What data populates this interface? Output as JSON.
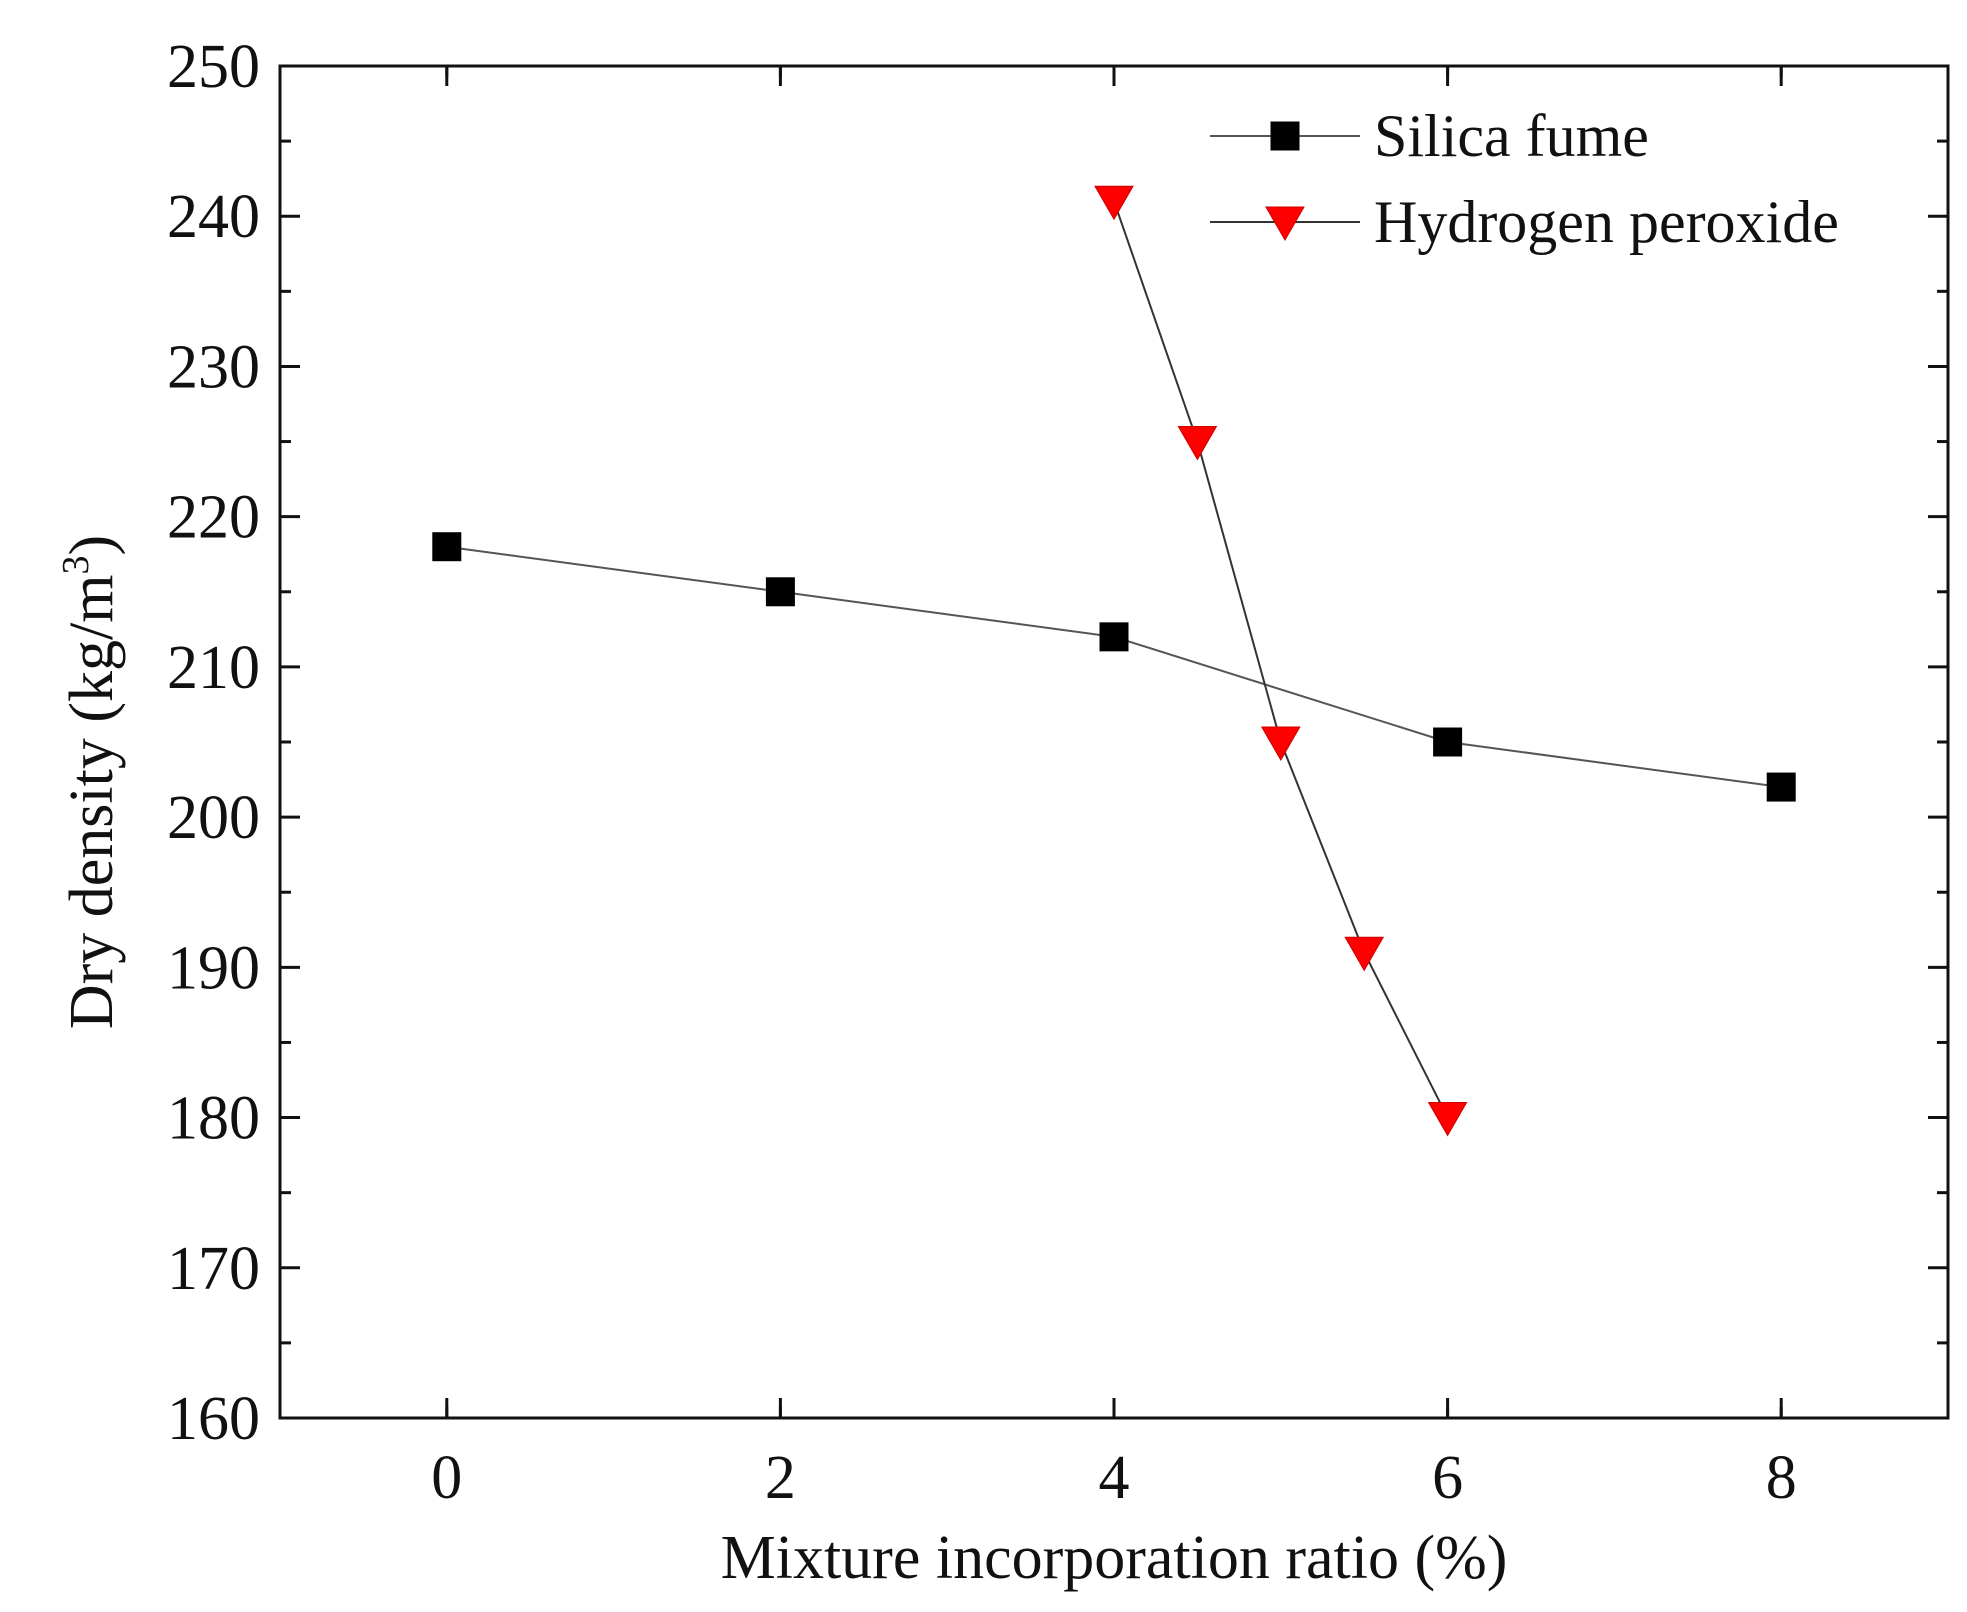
{
  "chart_data": {
    "type": "line",
    "xlabel": "Mixture incorporation ratio (%)",
    "ylabel_main": "Dry density (kg/m",
    "ylabel_sup": "3",
    "ylabel_close": ")",
    "xlim": [
      -1,
      9
    ],
    "ylim": [
      160,
      250
    ],
    "x_ticks": [
      0,
      2,
      4,
      6,
      8
    ],
    "y_ticks": [
      160,
      170,
      180,
      190,
      200,
      210,
      220,
      230,
      240,
      250
    ],
    "legend_position": "top-right",
    "series": [
      {
        "name": "Silica fume",
        "marker": "square",
        "color": "#000000",
        "line_color": "#555555",
        "x": [
          0,
          2,
          4,
          6,
          8
        ],
        "y": [
          218,
          215,
          212,
          205,
          202
        ]
      },
      {
        "name": "Hydrogen peroxide",
        "marker": "triangle-down",
        "color": "#ff0000",
        "line_color": "#333333",
        "x": [
          4,
          4.5,
          5,
          5.5,
          6
        ],
        "y": [
          241,
          225,
          205,
          191,
          180
        ]
      }
    ]
  }
}
